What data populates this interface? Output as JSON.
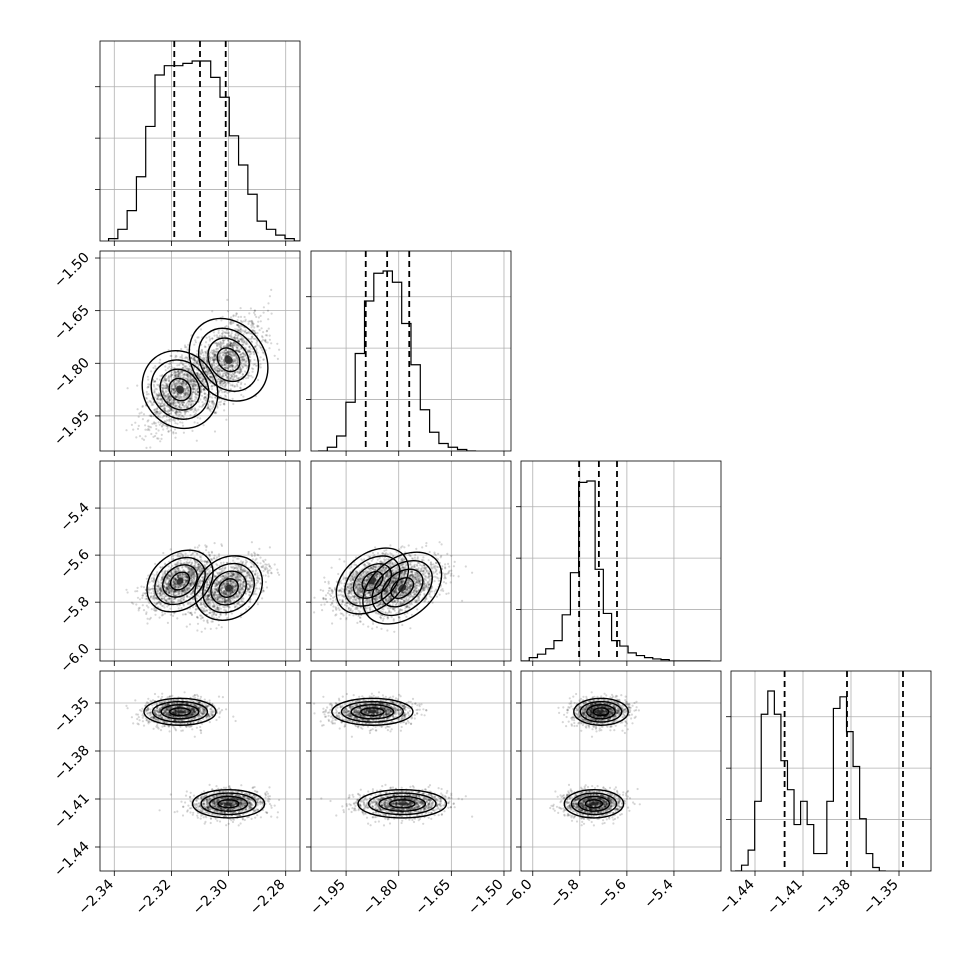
{
  "chart_data": {
    "type": "corner",
    "parameters": [
      {
        "range": [
          -2.345,
          -2.275
        ],
        "ticks": [
          -2.34,
          -2.32,
          -2.3,
          -2.28
        ],
        "tick_labels": [
          "−2.34",
          "−2.32",
          "−2.30",
          "−2.28"
        ],
        "quantiles": [
          -2.319,
          -2.31,
          -2.301
        ],
        "hist": {
          "edges_start": -2.342,
          "bin_width": 0.00325,
          "counts": [
            2,
            10,
            26,
            55,
            98,
            142,
            150,
            150,
            152,
            154,
            154,
            140,
            123,
            90,
            65,
            40,
            17,
            10,
            5,
            2,
            0
          ]
        }
      },
      {
        "range": [
          -2.05,
          -1.48
        ],
        "ticks": [
          -1.95,
          -1.8,
          -1.65,
          -1.5
        ],
        "tick_labels": [
          "−1.95",
          "−1.80",
          "−1.65",
          "−1.50"
        ],
        "quantiles": [
          -1.894,
          -1.833,
          -1.77
        ],
        "hist": {
          "edges_start": -2.03,
          "bin_width": 0.0265,
          "counts": [
            0,
            5,
            20,
            65,
            130,
            200,
            237,
            240,
            225,
            170,
            115,
            55,
            25,
            10,
            5,
            2,
            0
          ]
        }
      },
      {
        "range": [
          -6.05,
          -5.2
        ],
        "ticks": [
          -6.0,
          -5.8,
          -5.6,
          -5.4
        ],
        "tick_labels": [
          "−6.0",
          "−5.8",
          "−5.6",
          "−5.4"
        ],
        "quantiles": [
          -5.803,
          -5.719,
          -5.642
        ],
        "hist": {
          "edges_start": -6.05,
          "bin_width": 0.035,
          "counts": [
            0,
            5,
            10,
            18,
            30,
            68,
            130,
            263,
            265,
            135,
            70,
            30,
            22,
            12,
            8,
            5,
            3,
            2,
            0,
            0,
            0,
            0,
            0
          ]
        }
      },
      {
        "range": [
          -1.455,
          -1.33
        ],
        "ticks": [
          -1.44,
          -1.41,
          -1.38,
          -1.35
        ],
        "tick_labels": [
          "−1.44",
          "−1.41",
          "−1.38",
          "−1.35"
        ],
        "quantiles": [
          -1.4215,
          -1.3825,
          -1.3475
        ],
        "hist": {
          "edges_start": -1.4525,
          "bin_width": 0.0041,
          "counts": [
            0,
            5,
            18,
            60,
            135,
            155,
            135,
            95,
            70,
            40,
            60,
            40,
            15,
            15,
            60,
            140,
            150,
            120,
            90,
            45,
            15,
            3,
            0
          ]
        }
      }
    ],
    "scatter_components": [
      {
        "mean": [
          -2.317,
          -1.875,
          -5.71,
          -1.3555
        ],
        "sd": [
          0.006,
          0.055,
          0.055,
          0.004
        ],
        "weight": 0.5
      },
      {
        "mean": [
          -2.3,
          -1.79,
          -5.74,
          -1.413
        ],
        "sd": [
          0.006,
          0.06,
          0.06,
          0.0042
        ],
        "weight": 0.5
      }
    ]
  }
}
